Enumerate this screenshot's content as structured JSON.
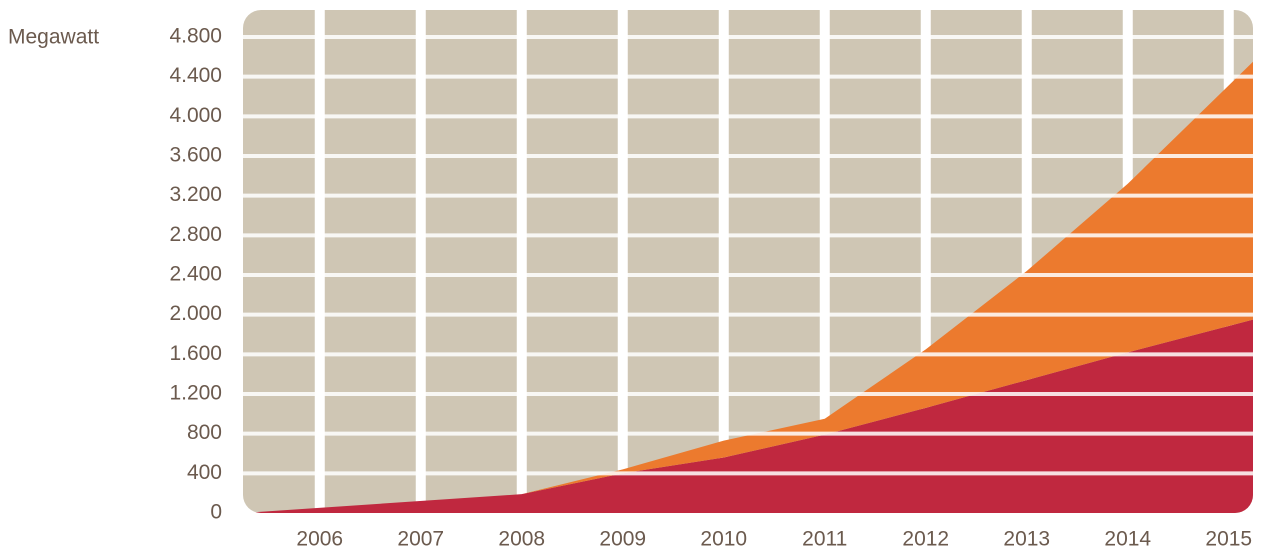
{
  "chart_data": {
    "type": "stacked-area",
    "y_label": "Megawatt",
    "x": [
      2005.24,
      2008,
      2009,
      2010,
      2011,
      2012,
      2013,
      2014,
      2015.24
    ],
    "series": [
      {
        "color": "#c0283f",
        "values": [
          0,
          190,
          400,
          560,
          790,
          1060,
          1340,
          1620,
          1950
        ]
      },
      {
        "color": "#ec7a2e",
        "values": [
          0,
          0,
          40,
          170,
          160,
          590,
          1100,
          1700,
          2600
        ]
      }
    ],
    "xlim": [
      2005.24,
      2015.24
    ],
    "xticks": [
      2006,
      2007,
      2008,
      2009,
      2010,
      2011,
      2012,
      2013,
      2014,
      2015
    ],
    "ylim": [
      0,
      4800
    ],
    "yticks": [
      0,
      {
        "value": 400,
        "label": "400"
      },
      {
        "value": 800,
        "label": "800"
      },
      {
        "value": 1200,
        "label": "1.200"
      },
      {
        "value": 1600,
        "label": "1.600"
      },
      {
        "value": 2000,
        "label": "2.000"
      },
      {
        "value": 2400,
        "label": "2.400"
      },
      {
        "value": 2800,
        "label": "2.800"
      },
      {
        "value": 3200,
        "label": "3.200"
      },
      {
        "value": 3600,
        "label": "3.600"
      },
      {
        "value": 4000,
        "label": "4.000"
      },
      {
        "value": 4400,
        "label": "4.400"
      },
      {
        "value": 4800,
        "label": "4.800"
      }
    ],
    "background": "#cfc6b4",
    "grid": true
  }
}
